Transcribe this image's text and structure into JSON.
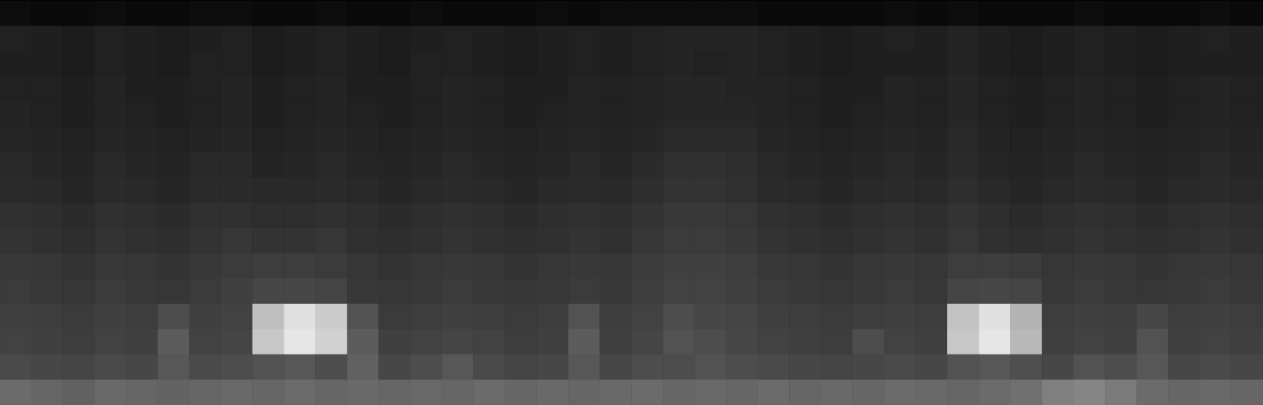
{
  "chart_data": {
    "type": "heatmap",
    "tick_labels": false,
    "zlim": [
      0,
      100
    ],
    "cells": [
      [
        5,
        4,
        4,
        5,
        4,
        4,
        5,
        5,
        4,
        4,
        5,
        4,
        4,
        5,
        4,
        4,
        4,
        5,
        4,
        5,
        5,
        5,
        5,
        5,
        4,
        4,
        4,
        4,
        5,
        4,
        5,
        4,
        4,
        4,
        5,
        4,
        4,
        4,
        5,
        4
      ],
      [
        13,
        12,
        11,
        13,
        12,
        11,
        12,
        13,
        11,
        12,
        13,
        12,
        11,
        12,
        13,
        12,
        11,
        12,
        13,
        12,
        13,
        14,
        14,
        14,
        13,
        12,
        11,
        12,
        13,
        12,
        14,
        12,
        11,
        12,
        13,
        12,
        11,
        12,
        13,
        12
      ],
      [
        12,
        12,
        11,
        13,
        12,
        11,
        13,
        13,
        11,
        12,
        13,
        12,
        11,
        13,
        13,
        12,
        11,
        12,
        13,
        12,
        13,
        14,
        13,
        14,
        13,
        12,
        11,
        12,
        12,
        12,
        14,
        12,
        11,
        12,
        13,
        12,
        11,
        12,
        12,
        12
      ],
      [
        13,
        13,
        12,
        14,
        12,
        12,
        13,
        14,
        12,
        13,
        14,
        12,
        12,
        13,
        14,
        13,
        12,
        12,
        14,
        13,
        14,
        15,
        15,
        14,
        14,
        13,
        12,
        12,
        14,
        13,
        15,
        13,
        12,
        13,
        14,
        13,
        12,
        13,
        14,
        13
      ],
      [
        14,
        13,
        12,
        14,
        13,
        12,
        13,
        14,
        12,
        13,
        14,
        13,
        12,
        13,
        14,
        13,
        12,
        13,
        14,
        13,
        14,
        15,
        15,
        15,
        14,
        13,
        12,
        13,
        14,
        13,
        15,
        13,
        12,
        13,
        14,
        13,
        12,
        13,
        14,
        13
      ],
      [
        15,
        14,
        13,
        15,
        14,
        13,
        14,
        15,
        13,
        14,
        15,
        14,
        13,
        14,
        15,
        14,
        13,
        14,
        15,
        14,
        15,
        17,
        17,
        17,
        15,
        14,
        13,
        14,
        15,
        14,
        16,
        14,
        13,
        14,
        15,
        14,
        13,
        14,
        15,
        14
      ],
      [
        16,
        15,
        14,
        16,
        15,
        14,
        16,
        16,
        14,
        15,
        16,
        15,
        14,
        15,
        16,
        15,
        14,
        15,
        16,
        15,
        17,
        19,
        19,
        18,
        16,
        15,
        14,
        15,
        16,
        15,
        17,
        15,
        14,
        15,
        16,
        15,
        14,
        15,
        16,
        15
      ],
      [
        17,
        16,
        15,
        17,
        16,
        15,
        17,
        17,
        16,
        16,
        17,
        16,
        15,
        16,
        17,
        16,
        15,
        16,
        17,
        16,
        18,
        20,
        20,
        19,
        17,
        16,
        15,
        16,
        17,
        16,
        18,
        16,
        15,
        16,
        17,
        16,
        15,
        16,
        17,
        16
      ],
      [
        19,
        18,
        17,
        19,
        18,
        17,
        19,
        19,
        18,
        18,
        19,
        18,
        17,
        18,
        19,
        18,
        17,
        18,
        19,
        18,
        20,
        22,
        22,
        21,
        19,
        18,
        17,
        18,
        19,
        18,
        20,
        18,
        17,
        18,
        19,
        18,
        17,
        18,
        19,
        18
      ],
      [
        20,
        19,
        18,
        20,
        19,
        18,
        20,
        21,
        20,
        20,
        21,
        19,
        18,
        19,
        20,
        19,
        18,
        19,
        20,
        19,
        21,
        23,
        23,
        22,
        20,
        19,
        18,
        19,
        20,
        19,
        21,
        19,
        18,
        19,
        20,
        19,
        18,
        19,
        20,
        19
      ],
      [
        22,
        21,
        20,
        22,
        21,
        20,
        22,
        23,
        24,
        24,
        23,
        21,
        20,
        21,
        22,
        21,
        20,
        21,
        22,
        21,
        23,
        25,
        25,
        24,
        22,
        21,
        20,
        21,
        22,
        21,
        24,
        24,
        23,
        21,
        22,
        21,
        20,
        21,
        22,
        21
      ],
      [
        23,
        22,
        21,
        23,
        22,
        21,
        23,
        25,
        28,
        28,
        27,
        22,
        21,
        22,
        23,
        22,
        21,
        22,
        23,
        22,
        24,
        26,
        26,
        25,
        23,
        22,
        21,
        22,
        23,
        22,
        27,
        28,
        27,
        22,
        23,
        22,
        21,
        22,
        23,
        22
      ],
      [
        25,
        24,
        23,
        25,
        24,
        30,
        25,
        26,
        75,
        88,
        80,
        32,
        23,
        24,
        25,
        24,
        23,
        24,
        32,
        24,
        26,
        30,
        28,
        27,
        25,
        24,
        23,
        24,
        25,
        24,
        76,
        88,
        70,
        24,
        25,
        24,
        28,
        24,
        25,
        24
      ],
      [
        26,
        25,
        24,
        26,
        25,
        36,
        26,
        27,
        78,
        90,
        82,
        36,
        25,
        26,
        27,
        26,
        24,
        25,
        36,
        25,
        27,
        32,
        30,
        28,
        26,
        25,
        24,
        30,
        26,
        25,
        78,
        90,
        72,
        25,
        26,
        25,
        32,
        25,
        26,
        25
      ],
      [
        29,
        28,
        27,
        29,
        28,
        34,
        29,
        30,
        32,
        34,
        30,
        38,
        28,
        30,
        34,
        29,
        27,
        28,
        34,
        28,
        30,
        30,
        32,
        30,
        29,
        28,
        27,
        28,
        29,
        28,
        32,
        34,
        31,
        28,
        32,
        30,
        34,
        28,
        29,
        28
      ],
      [
        42,
        40,
        38,
        41,
        40,
        39,
        40,
        41,
        40,
        42,
        40,
        41,
        40,
        41,
        40,
        42,
        40,
        41,
        40,
        41,
        42,
        40,
        41,
        40,
        42,
        40,
        41,
        40,
        42,
        41,
        40,
        42,
        44,
        50,
        52,
        48,
        42,
        40,
        41,
        40
      ]
    ]
  }
}
